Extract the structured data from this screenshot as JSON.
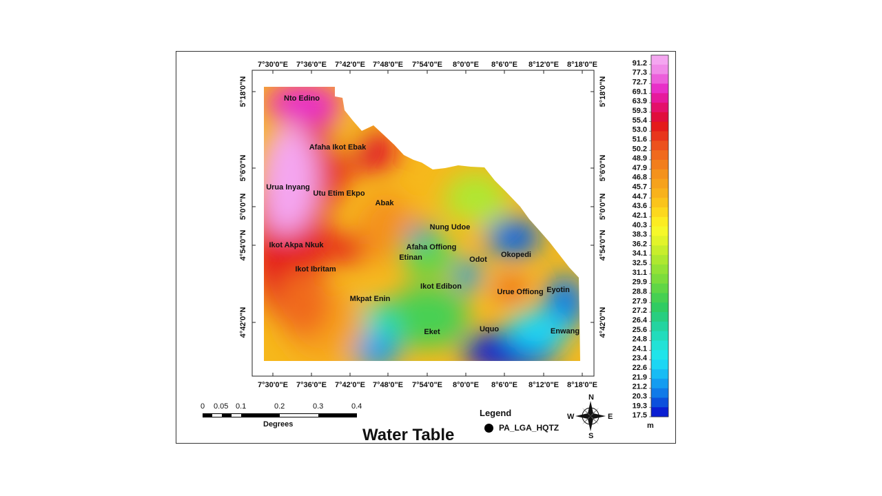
{
  "title": "Water Table",
  "legend": {
    "heading": "Legend",
    "item_label": "PA_LGA_HQTZ"
  },
  "colorbar": {
    "unit": "m",
    "values": [
      "91.2",
      "77.3",
      "72.7",
      "69.1",
      "63.9",
      "59.3",
      "55.4",
      "53.0",
      "51.6",
      "50.2",
      "48.9",
      "47.9",
      "46.8",
      "45.7",
      "44.7",
      "43.6",
      "42.1",
      "40.3",
      "38.3",
      "36.2",
      "34.1",
      "32.5",
      "31.1",
      "29.9",
      "28.8",
      "27.9",
      "27.2",
      "26.4",
      "25.6",
      "24.8",
      "24.1",
      "23.4",
      "22.6",
      "21.9",
      "21.2",
      "20.3",
      "19.3",
      "17.5"
    ],
    "colors": [
      "#f4a6f0",
      "#f08be8",
      "#ec5fdb",
      "#e82fc8",
      "#e6199c",
      "#e4106a",
      "#e00d3c",
      "#e41b1b",
      "#e8361c",
      "#ec521e",
      "#f06a1e",
      "#f27e1c",
      "#f4921c",
      "#f6a21c",
      "#f8b21c",
      "#fac41c",
      "#fcd81e",
      "#fcec22",
      "#f6f82a",
      "#e2f42a",
      "#c8ee2c",
      "#aee830",
      "#94e236",
      "#7cdc3c",
      "#60d646",
      "#46d052",
      "#30cc62",
      "#28ce80",
      "#24d4a0",
      "#22dcbc",
      "#22e2d6",
      "#20e4ea",
      "#1cd6f4",
      "#18bcf4",
      "#149cf0",
      "#107ae8",
      "#0c50dc",
      "#0a1ed2"
    ]
  },
  "scalebar": {
    "labels": [
      "0",
      "0.05",
      "0.1",
      "0.2",
      "0.3",
      "0.4"
    ],
    "unit": "Degrees"
  },
  "north_arrow": {
    "n": "N",
    "s": "S",
    "e": "E",
    "w": "W"
  },
  "axes": {
    "x_ticks": [
      "7°30'0\"E",
      "7°36'0\"E",
      "7°42'0\"E",
      "7°48'0\"E",
      "7°54'0\"E",
      "8°0'0\"E",
      "8°6'0\"E",
      "8°12'0\"E",
      "8°18'0\"E"
    ],
    "y_ticks": [
      "5°18'0\"N",
      "5°6'0\"N",
      "5°0'0\"N",
      "4°54'0\"N",
      "4°42'0\"N"
    ]
  },
  "places": [
    {
      "name": "Nto Edino"
    },
    {
      "name": "Afaha Ikot Ebak"
    },
    {
      "name": "Urua Inyang"
    },
    {
      "name": "Utu Etim Ekpo"
    },
    {
      "name": "Abak"
    },
    {
      "name": "Nung Udoe"
    },
    {
      "name": "Ikot Akpa Nkuk"
    },
    {
      "name": "Afaha Offiong"
    },
    {
      "name": "Etinan"
    },
    {
      "name": "Odot"
    },
    {
      "name": "Okopedi"
    },
    {
      "name": "Ikot Ibritam"
    },
    {
      "name": "Ikot Edibon"
    },
    {
      "name": "Urue Offiong"
    },
    {
      "name": "Eyotin"
    },
    {
      "name": "Mkpat Enin"
    },
    {
      "name": "Uquo"
    },
    {
      "name": "Eket"
    },
    {
      "name": "Enwang"
    }
  ]
}
